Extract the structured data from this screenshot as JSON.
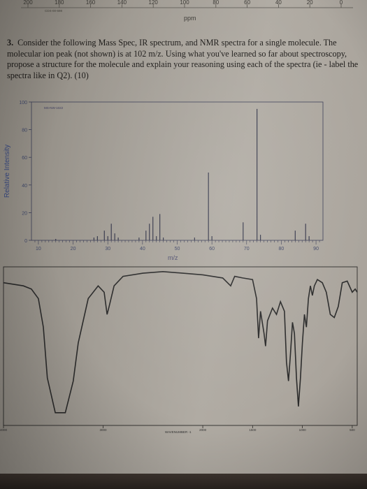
{
  "nmr_axis": {
    "ticks": [
      "200",
      "180",
      "160",
      "140",
      "120",
      "100",
      "80",
      "60",
      "40",
      "20",
      "0"
    ],
    "id_text": "CDS-00-698",
    "unit": "ppm"
  },
  "question": {
    "number": "3.",
    "text": "Consider the following Mass Spec, IR spectrum, and NMR spectra for a single molecule. The molecular ion peak (not shown) is at 102 m/z.  Using what you've learned so far about spectroscopy, propose a structure for the molecule and explain your reasoning using each of the spectra (ie - label the spectra like in Q2).  (10)"
  },
  "chart_data": [
    {
      "type": "bar",
      "id_label": "MS-NW-1022",
      "xlabel": "m/z",
      "ylabel": "Relative Intensity",
      "xlim": [
        8,
        92
      ],
      "ylim": [
        0,
        100
      ],
      "x_ticks": [
        "10",
        "20",
        "30",
        "40",
        "50",
        "60",
        "70",
        "80",
        "90"
      ],
      "y_ticks": [
        "0",
        "20",
        "40",
        "60",
        "80",
        "100"
      ],
      "peaks": [
        {
          "mz": 15,
          "y": 1
        },
        {
          "mz": 26,
          "y": 2
        },
        {
          "mz": 27,
          "y": 3
        },
        {
          "mz": 29,
          "y": 7
        },
        {
          "mz": 30,
          "y": 3
        },
        {
          "mz": 31,
          "y": 12
        },
        {
          "mz": 32,
          "y": 5
        },
        {
          "mz": 33,
          "y": 2
        },
        {
          "mz": 39,
          "y": 2
        },
        {
          "mz": 41,
          "y": 7
        },
        {
          "mz": 42,
          "y": 12
        },
        {
          "mz": 43,
          "y": 17
        },
        {
          "mz": 44,
          "y": 3
        },
        {
          "mz": 45,
          "y": 19
        },
        {
          "mz": 46,
          "y": 2
        },
        {
          "mz": 55,
          "y": 2
        },
        {
          "mz": 59,
          "y": 49
        },
        {
          "mz": 60,
          "y": 3
        },
        {
          "mz": 69,
          "y": 13
        },
        {
          "mz": 73,
          "y": 95
        },
        {
          "mz": 74,
          "y": 4
        },
        {
          "mz": 84,
          "y": 7
        },
        {
          "mz": 87,
          "y": 12
        },
        {
          "mz": 88,
          "y": 3
        }
      ]
    },
    {
      "type": "line",
      "xlabel": "WAVENUMBER -1",
      "x_ticks": [
        "4000",
        "3000",
        "2000",
        "1500",
        "1000",
        "500"
      ],
      "xlim": [
        4000,
        450
      ],
      "ylim": [
        0,
        100
      ],
      "transmittance": [
        [
          4000,
          90
        ],
        [
          3800,
          88
        ],
        [
          3720,
          86
        ],
        [
          3650,
          80
        ],
        [
          3600,
          62
        ],
        [
          3560,
          30
        ],
        [
          3480,
          8
        ],
        [
          3380,
          8
        ],
        [
          3300,
          28
        ],
        [
          3250,
          52
        ],
        [
          3150,
          80
        ],
        [
          3050,
          88
        ],
        [
          2990,
          84
        ],
        [
          2960,
          70
        ],
        [
          2940,
          75
        ],
        [
          2890,
          88
        ],
        [
          2800,
          94
        ],
        [
          2600,
          96
        ],
        [
          2400,
          97
        ],
        [
          2200,
          96
        ],
        [
          2000,
          95
        ],
        [
          1800,
          93
        ],
        [
          1720,
          88
        ],
        [
          1680,
          94
        ],
        [
          1600,
          93
        ],
        [
          1500,
          92
        ],
        [
          1460,
          80
        ],
        [
          1440,
          55
        ],
        [
          1420,
          72
        ],
        [
          1385,
          58
        ],
        [
          1370,
          50
        ],
        [
          1350,
          66
        ],
        [
          1300,
          74
        ],
        [
          1260,
          70
        ],
        [
          1220,
          78
        ],
        [
          1180,
          72
        ],
        [
          1160,
          40
        ],
        [
          1140,
          28
        ],
        [
          1120,
          45
        ],
        [
          1100,
          65
        ],
        [
          1080,
          58
        ],
        [
          1060,
          30
        ],
        [
          1040,
          12
        ],
        [
          1020,
          30
        ],
        [
          1000,
          52
        ],
        [
          980,
          70
        ],
        [
          960,
          62
        ],
        [
          940,
          80
        ],
        [
          920,
          88
        ],
        [
          900,
          82
        ],
        [
          880,
          88
        ],
        [
          850,
          92
        ],
        [
          800,
          90
        ],
        [
          760,
          84
        ],
        [
          720,
          70
        ],
        [
          680,
          68
        ],
        [
          640,
          75
        ],
        [
          600,
          90
        ],
        [
          550,
          91
        ],
        [
          500,
          84
        ],
        [
          470,
          86
        ],
        [
          450,
          84
        ]
      ]
    }
  ]
}
